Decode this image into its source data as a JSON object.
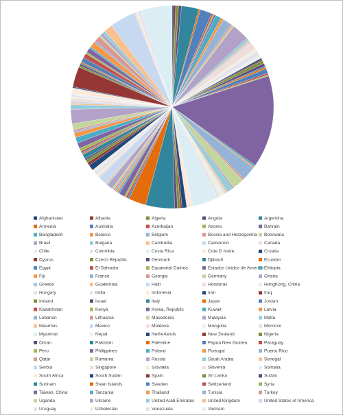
{
  "chart_data": {
    "type": "pie",
    "categories": [
      "Afghanistan",
      "Albania",
      "Algeria",
      "Angola",
      "Argentina",
      "Armenia",
      "Australia",
      "Azerbaijan",
      "Azores",
      "Bahrain",
      "Bangladesh",
      "Belarus",
      "Belgium",
      "Bosnia and Herzegovina",
      "Botswana",
      "Brasil",
      "Bulgaria",
      "Cambodia",
      "Cameroon",
      "Canada",
      "Chile",
      "Colombia",
      "Costa Rica",
      "Cote D Ivoire",
      "Croatia",
      "Cyprus",
      "Czech Republic",
      "Denmark",
      "Djibouti",
      "Ecuador",
      "Egypt",
      "El Salvador",
      "Equatorial Guinea",
      "Estados Unidos de America",
      "Ethiopia",
      "Fiji",
      "France",
      "Georgia",
      "Germany",
      "Ghana",
      "Greece",
      "Guatemala",
      "Haiti",
      "Honduras",
      "HongKong, China",
      "Hungary",
      "India",
      "Indonesia",
      "Iran",
      "Iraq",
      "Ireland",
      "Israel",
      "Italy",
      "Japan",
      "Jordan",
      "Kazakhstan",
      "Kenya",
      "Korea, Republic",
      "Kuwait",
      "Latvia",
      "Lebanon",
      "Lithuania",
      "Macedonia",
      "Malaysia",
      "Malta",
      "Mauritius",
      "Mexico",
      "Moldova",
      "Mongolia",
      "Morocco",
      "Myanmar",
      "Nepal",
      "Netherlands",
      "New Zealand",
      "Nigeria",
      "Oman",
      "Pakistan",
      "Palestine",
      "Papua New Guinea",
      "Paraguay",
      "Peru",
      "Philippines",
      "Poland",
      "Portugal",
      "Puerto Rico",
      "Qatar",
      "Romania",
      "Russia",
      "Saudi Arabia",
      "Senegal",
      "Serbia",
      "Singapore",
      "Slovakia",
      "Slovenia",
      "Somalia",
      "South Africa",
      "South Sudan",
      "Spain",
      "Sri Lanka",
      "Sudan",
      "Surinam",
      "Swan Islands",
      "Sweden",
      "Switzerland",
      "Syria",
      "Taiwan, China",
      "Tanzania",
      "Thailand",
      "Tunisia",
      "Turkey",
      "Uganda",
      "Ukraine",
      "United Arab Emirates",
      "United Kingdom",
      "United States of America",
      "Uruguay",
      "Uzbekistan",
      "Venezuela",
      "Vietnam"
    ],
    "values": [
      0.3,
      0.3,
      0.5,
      0.5,
      3,
      0.3,
      2,
      0.3,
      0.2,
      0.3,
      1,
      0.5,
      1.5,
      0.3,
      0.3,
      3,
      0.5,
      0.3,
      0.3,
      1.2,
      0.5,
      0.8,
      0.3,
      0.3,
      0.3,
      0.2,
      0.5,
      0.5,
      0.2,
      0.3,
      0.8,
      0.3,
      0.2,
      16,
      0.3,
      0.2,
      2.5,
      0.3,
      2,
      0.3,
      1,
      0.3,
      0.2,
      0.2,
      0.8,
      0.5,
      4.5,
      1,
      0.8,
      0.3,
      0.5,
      0.5,
      5,
      3,
      0.3,
      0.3,
      0.3,
      1,
      0.3,
      0.3,
      0.3,
      0.3,
      0.3,
      1,
      0.2,
      0.2,
      1.5,
      0.3,
      0.3,
      0.5,
      0.3,
      0.3,
      1,
      0.5,
      0.5,
      0.3,
      0.8,
      0.2,
      0.2,
      0.3,
      0.5,
      1,
      1,
      0.8,
      0.3,
      0.3,
      1,
      2.5,
      0.8,
      0.3,
      0.3,
      0.5,
      0.3,
      0.3,
      0.2,
      1,
      0.2,
      3.5,
      0.3,
      0.3,
      0.2,
      0.2,
      0.8,
      0.8,
      0.3,
      0.8,
      0.3,
      1,
      0.3,
      1,
      0.3,
      0.5,
      0.5,
      1.5,
      4.5,
      0.3,
      0.3,
      0.5,
      5.5
    ],
    "colors": [
      "#1f497d",
      "#953735",
      "#77933c",
      "#604a7b",
      "#31859c",
      "#e46c0a",
      "#4f81bd",
      "#c0504d",
      "#9bbb59",
      "#8064a2",
      "#4bacc6",
      "#f79646",
      "#95b3d7",
      "#d99694",
      "#c3d69b",
      "#b3a2c7",
      "#93cddd",
      "#fac090",
      "#c6d9f1",
      "#f2dcdb",
      "#ebf1de",
      "#e6e0ec",
      "#dbeef4",
      "#fdeada"
    ]
  }
}
